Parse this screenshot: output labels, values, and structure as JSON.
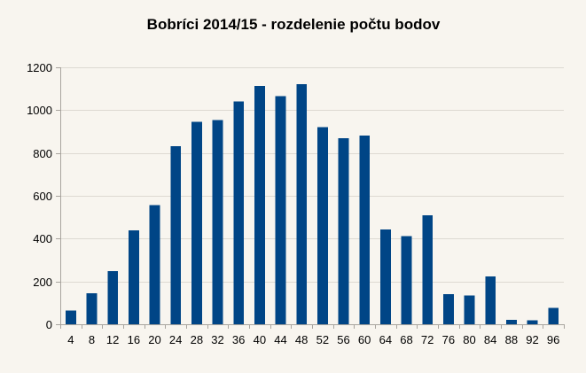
{
  "chart_data": {
    "type": "bar",
    "title": "Bobríci 2014/15 - rozdelenie počtu bodov",
    "xlabel": "",
    "ylabel": "",
    "categories": [
      "4",
      "8",
      "12",
      "16",
      "20",
      "24",
      "28",
      "32",
      "36",
      "40",
      "44",
      "48",
      "52",
      "56",
      "60",
      "64",
      "68",
      "72",
      "76",
      "80",
      "84",
      "88",
      "92",
      "96"
    ],
    "values": [
      65,
      145,
      248,
      438,
      556,
      831,
      945,
      953,
      1040,
      1113,
      1066,
      1122,
      921,
      868,
      882,
      443,
      411,
      508,
      140,
      135,
      224,
      20,
      18,
      76
    ],
    "ylim": [
      0,
      1200
    ],
    "yticks": [
      0,
      200,
      400,
      600,
      800,
      1000,
      1200
    ],
    "grid": true,
    "legend": "none",
    "bar_color": "#004586"
  }
}
